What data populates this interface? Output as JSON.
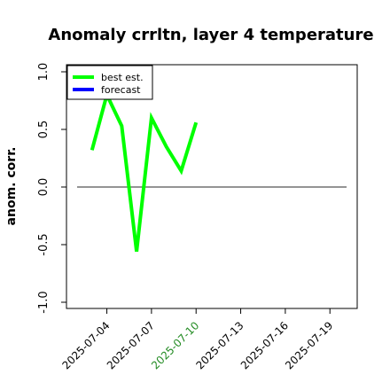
{
  "chart_data": {
    "type": "line",
    "title": "Anomaly crrltn, layer 4 temperature",
    "ylabel": "anom. corr.",
    "xlabel": "",
    "ylim": [
      -1.0,
      1.0
    ],
    "yticks": [
      -1.0,
      -0.5,
      0.0,
      0.5,
      1.0
    ],
    "ytick_labels": [
      "-1.0",
      "-0.5",
      "0.0",
      "0.5",
      "1.0"
    ],
    "xlim": [
      "2025-07-02",
      "2025-07-20"
    ],
    "xticks": [
      "2025-07-04",
      "2025-07-07",
      "2025-07-10",
      "2025-07-13",
      "2025-07-16",
      "2025-07-19"
    ],
    "xtick_colors": [
      "#000000",
      "#000000",
      "#228b22",
      "#000000",
      "#000000",
      "#000000"
    ],
    "zero_line": true,
    "legend_position": "top-left",
    "series": [
      {
        "name": "best est.",
        "color": "#00ff00",
        "x": [
          "2025-07-03",
          "2025-07-04",
          "2025-07-05",
          "2025-07-06",
          "2025-07-07",
          "2025-07-08",
          "2025-07-09",
          "2025-07-10"
        ],
        "y": [
          0.32,
          0.8,
          0.53,
          -0.56,
          0.6,
          0.35,
          0.14,
          0.56
        ]
      },
      {
        "name": "forecast",
        "color": "#0000ff",
        "x": [],
        "y": []
      }
    ]
  }
}
